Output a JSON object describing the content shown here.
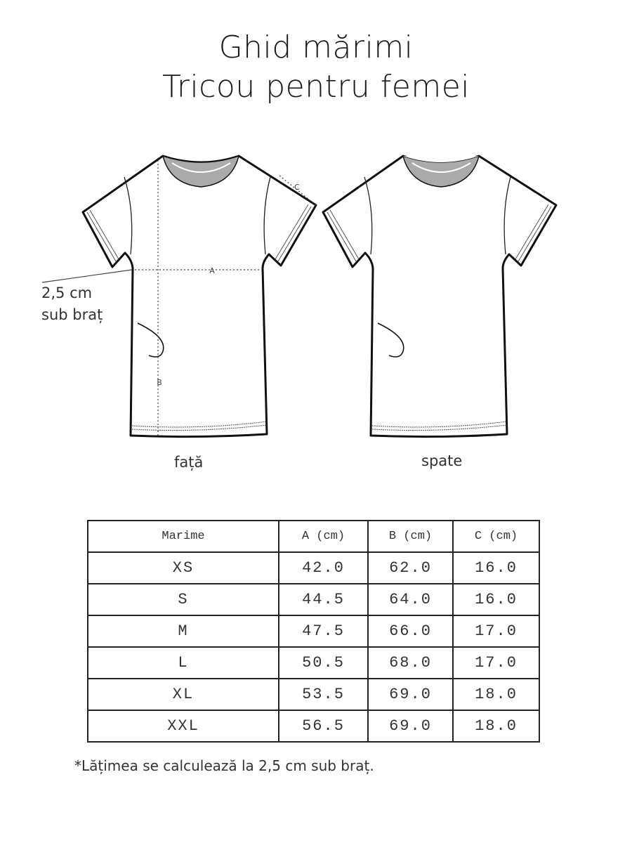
{
  "title_line1": "Ghid mărimi",
  "title_line2": "Tricou pentru femei",
  "diagram": {
    "front_label": "față",
    "back_label": "spate",
    "armpit_note_line1": "2,5 cm",
    "armpit_note_line2": "sub braț",
    "measure_a": "A",
    "measure_b": "B",
    "measure_c": "C"
  },
  "table": {
    "headers": [
      "Marime",
      "A (cm)",
      "B (cm)",
      "C (cm)"
    ],
    "rows": [
      [
        "XS",
        "42.0",
        "62.0",
        "16.0"
      ],
      [
        "S",
        "44.5",
        "64.0",
        "16.0"
      ],
      [
        "M",
        "47.5",
        "66.0",
        "17.0"
      ],
      [
        "L",
        "50.5",
        "68.0",
        "17.0"
      ],
      [
        "XL",
        "53.5",
        "69.0",
        "18.0"
      ],
      [
        "XXL",
        "56.5",
        "69.0",
        "18.0"
      ]
    ]
  },
  "footnote": "*Lățimea se calculează la 2,5 cm sub braț."
}
